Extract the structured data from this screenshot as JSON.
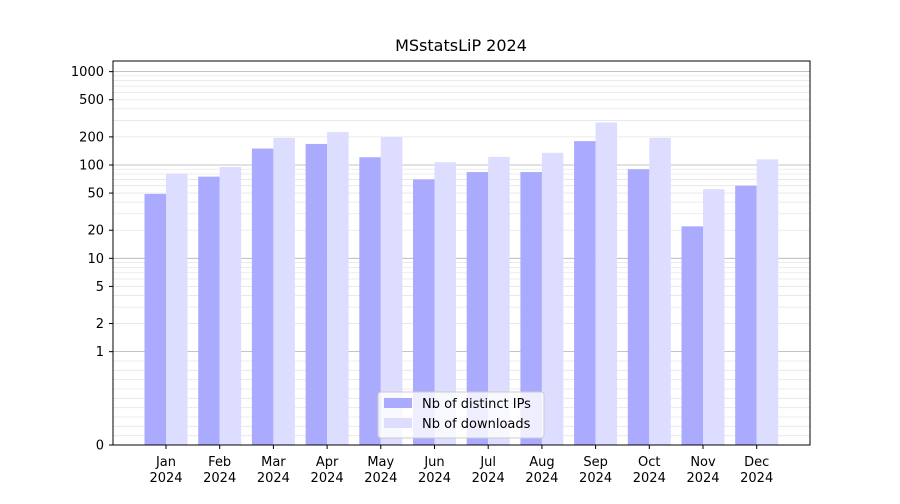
{
  "chart_data": {
    "type": "bar",
    "title": "MSstatsLiP 2024",
    "xlabel": "",
    "ylabel": "",
    "y_scale": "symlog",
    "y_range": [
      0,
      1300
    ],
    "y_tick_values": [
      0,
      1,
      2,
      5,
      10,
      20,
      50,
      100,
      200,
      500,
      1000
    ],
    "y_tick_labels": [
      "0",
      "1",
      "2",
      "5",
      "10",
      "20",
      "50",
      "100",
      "200",
      "500",
      "1000"
    ],
    "grid": "horizontal",
    "legend_position": "bottom-center",
    "categories": [
      [
        "Jan",
        "2024"
      ],
      [
        "Feb",
        "2024"
      ],
      [
        "Mar",
        "2024"
      ],
      [
        "Apr",
        "2024"
      ],
      [
        "May",
        "2024"
      ],
      [
        "Jun",
        "2024"
      ],
      [
        "Jul",
        "2024"
      ],
      [
        "Aug",
        "2024"
      ],
      [
        "Sep",
        "2024"
      ],
      [
        "Oct",
        "2024"
      ],
      [
        "Nov",
        "2024"
      ],
      [
        "Dec",
        "2024"
      ]
    ],
    "series": [
      {
        "name": "Nb of distinct IPs",
        "color": "#aaaaff",
        "values": [
          49,
          75,
          150,
          168,
          121,
          70,
          84,
          84,
          180,
          90,
          22,
          60
        ]
      },
      {
        "name": "Nb of downloads",
        "color": "#ddddff",
        "values": [
          81,
          95,
          195,
          225,
          200,
          107,
          122,
          135,
          285,
          195,
          55,
          115
        ]
      }
    ]
  }
}
